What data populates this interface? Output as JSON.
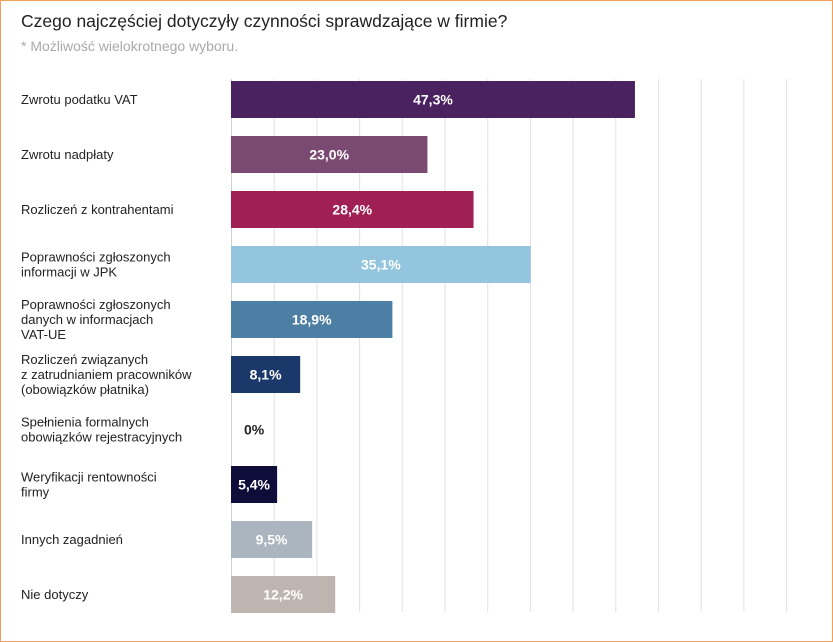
{
  "chart_data": {
    "type": "bar",
    "orientation": "horizontal",
    "title": "Czego najczęściej dotyczyły czynności sprawdzające w firmie?",
    "subtitle": "* Możliwość wielokrotnego wyboru.",
    "categories": [
      "Zwrotu podatku VAT",
      "Zwrotu nadpłaty",
      "Rozliczeń z kontrahentami",
      "Poprawności zgłoszonych\ninformacji w JPK",
      "Poprawności zgłoszonych\ndanych w informacjach\nVAT-UE",
      "Rozliczeń związanych\nz zatrudnianiem pracowników\n(obowiązków płatnika)",
      "Spełnienia formalnych\nobowiązków rejestracyjnych",
      "Weryfikacji rentowności\nfirmy",
      "Innych zagadnień",
      "Nie dotyczy"
    ],
    "values": [
      47.3,
      23.0,
      28.4,
      35.1,
      18.9,
      8.1,
      0,
      5.4,
      9.5,
      12.2
    ],
    "value_labels": [
      "47,3%",
      "23,0%",
      "28,4%",
      "35,1%",
      "18,9%",
      "8,1%",
      "0%",
      "5,4%",
      "9,5%",
      "12,2%"
    ],
    "colors": [
      "#4a2260",
      "#7a4a72",
      "#a01f55",
      "#93c6de",
      "#4d7ea3",
      "#1b386b",
      "#ffffff",
      "#0e0d3a",
      "#aab5bf",
      "#bfb5b0"
    ],
    "label_colors": [
      "#ffffff",
      "#ffffff",
      "#ffffff",
      "#ffffff",
      "#ffffff",
      "#ffffff",
      "#222222",
      "#ffffff",
      "#ffffff",
      "#ffffff"
    ],
    "xlim": [
      0,
      65
    ],
    "grid_step": 5,
    "grid": true,
    "xlabel": "",
    "ylabel": ""
  }
}
